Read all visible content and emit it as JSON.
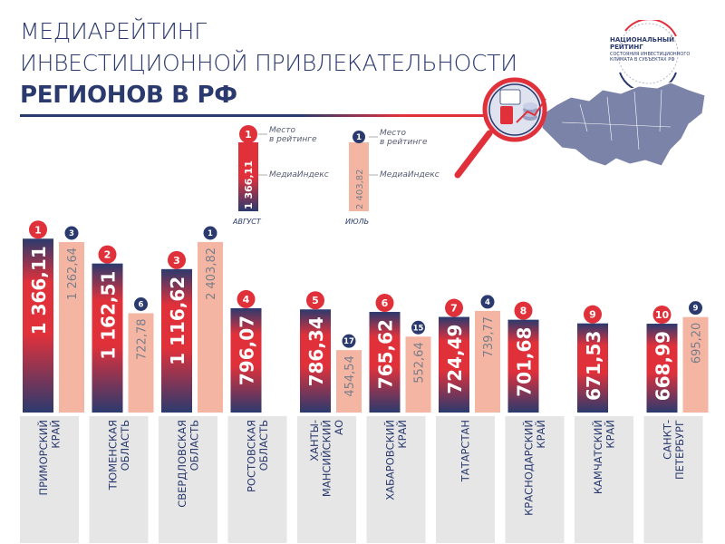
{
  "header": {
    "title_line1": "МЕДИАРЕЙТИНГ",
    "title_line2": "ИНВЕСТИЦИОННОЙ ПРИВЛЕКАТЕЛЬНОСТИ",
    "title_line3": "РЕГИОНОВ В РФ"
  },
  "logo": {
    "line1": "НАЦИОНАЛЬНЫЙ",
    "line2": "РЕЙТИНГ",
    "subtitle": "СОСТОЯНИЯ ИНВЕСТИЦИОННОГО КЛИМАТА В СУБЪЕКТАХ РФ"
  },
  "legend": {
    "august": {
      "rank": "1",
      "value": "1 366,11",
      "month": "АВГУСТ",
      "rank_label": "Место\nв рейтинге",
      "index_label": "МедиаИндекс"
    },
    "july": {
      "rank": "1",
      "value": "2 403,82",
      "month": "ИЮЛЬ",
      "rank_label": "Место\nв рейтинге",
      "index_label": "МедиаИндекс"
    }
  },
  "colors": {
    "navy": "#2b3a6e",
    "red": "#e0313b",
    "salmon": "#f4b5a2",
    "label_bg": "#e6e6e6"
  },
  "chart_data": {
    "type": "bar",
    "categories": [
      "ПРИМОРСКИЙ КРАЙ",
      "ТЮМЕНСКАЯ ОБЛАСТЬ",
      "СВЕРДЛОВСКАЯ ОБЛАСТЬ",
      "РОСТОВСКАЯ ОБЛАСТЬ",
      "ХАНТЫ-МАНСИЙСКИЙ АО",
      "ХАБАРОВСКИЙ КРАЙ",
      "ТАТАРСТАН",
      "КРАСНОДАРСКИЙ КРАЙ",
      "КАМЧАТСКИЙ КРАЙ",
      "САНКТ-ПЕТЕРБУРГ"
    ],
    "category_lines": [
      [
        "ПРИМОРСКИЙ",
        "КРАЙ"
      ],
      [
        "ТЮМЕНСКАЯ",
        "ОБЛАСТЬ"
      ],
      [
        "СВЕРДЛОВСКАЯ",
        "ОБЛАСТЬ"
      ],
      [
        "РОСТОВСКАЯ",
        "ОБЛАСТЬ"
      ],
      [
        "ХАНТЫ-",
        "МАНСИЙСКИЙ",
        "АО"
      ],
      [
        "ХАБАРОВСКИЙ",
        "КРАЙ"
      ],
      [
        "ТАТАРСТАН"
      ],
      [
        "КРАСНОДАРСКИЙ",
        "КРАЙ"
      ],
      [
        "КАМЧАТСКИЙ",
        "КРАЙ"
      ],
      [
        "САНКТ-",
        "ПЕТЕРБУРГ"
      ]
    ],
    "series": [
      {
        "name": "АВГУСТ",
        "values": [
          1366.11,
          1162.51,
          1116.62,
          796.07,
          786.34,
          765.62,
          724.49,
          701.68,
          671.53,
          668.99
        ],
        "labels": [
          "1 366,11",
          "1 162,51",
          "1 116,62",
          "796,07",
          "786,34",
          "765,62",
          "724,49",
          "701,68",
          "671,53",
          "668,99"
        ],
        "ranks": [
          "1",
          "2",
          "3",
          "4",
          "5",
          "6",
          "7",
          "8",
          "9",
          "10"
        ]
      },
      {
        "name": "ИЮЛЬ",
        "values": [
          1262.64,
          722.78,
          2403.82,
          null,
          454.54,
          552.64,
          739.77,
          null,
          null,
          695.2
        ],
        "labels": [
          "1 262,64",
          "722,78",
          "2 403,82",
          "",
          "454,54",
          "552,64",
          "739,77",
          "",
          "",
          "695,20"
        ],
        "ranks": [
          "3",
          "6",
          "1",
          "",
          "17",
          "15",
          "4",
          "",
          "",
          "9"
        ]
      }
    ]
  }
}
